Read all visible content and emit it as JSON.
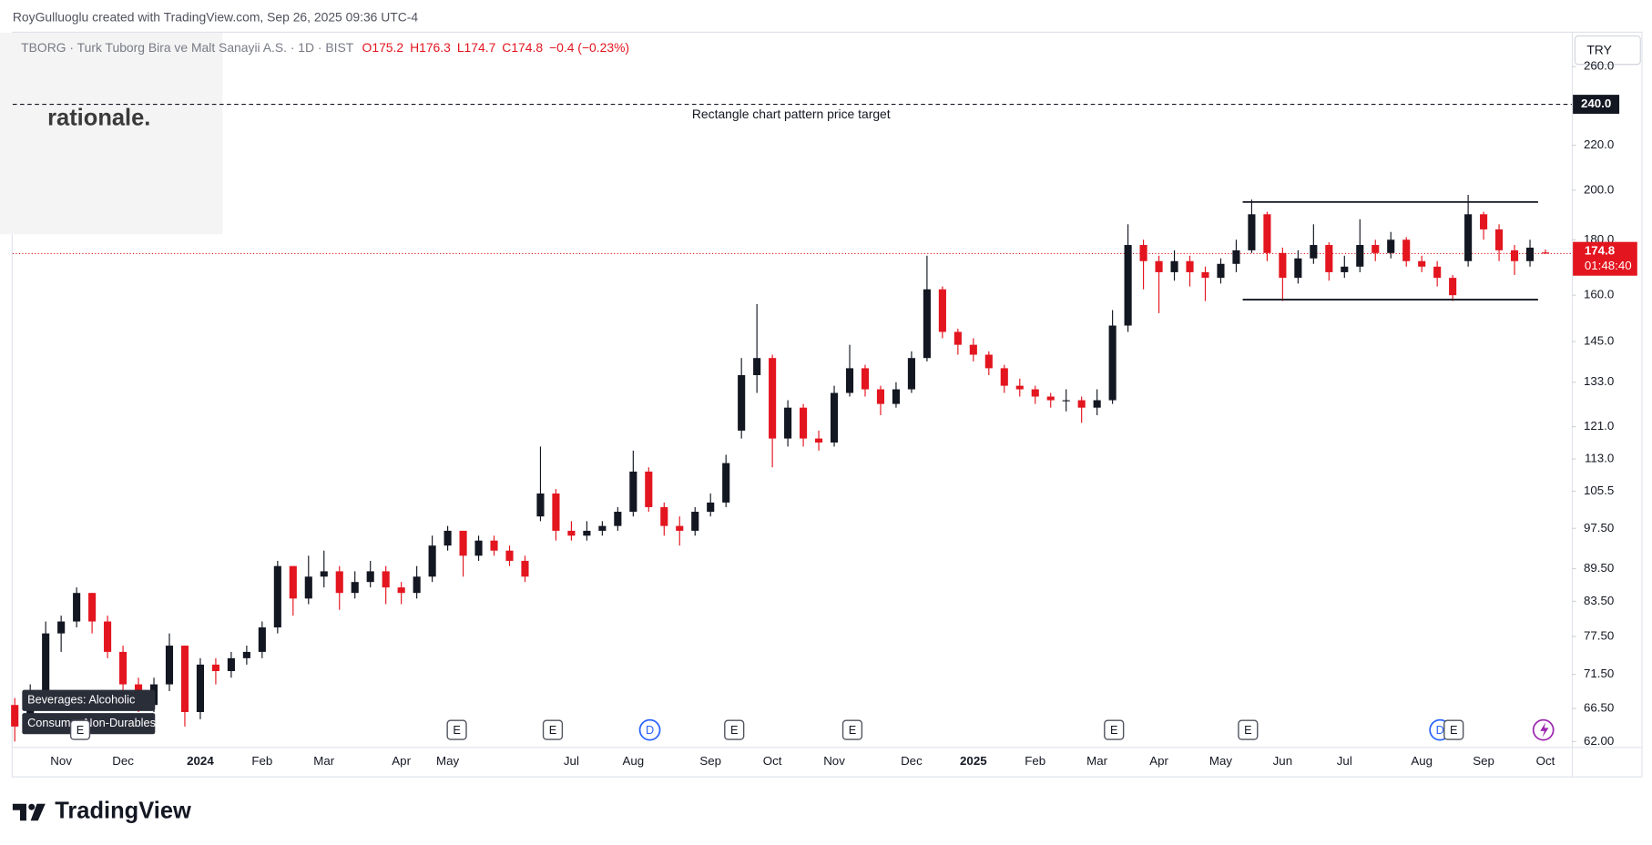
{
  "header": "RoyGulluoglu created with TradingView.com, Sep 26, 2025 09:36 UTC-4",
  "watermark": "rationale.",
  "currency": "TRY",
  "branding": "TradingView",
  "tags": [
    "Beverages: Alcoholic",
    "Consumer Non-Durables"
  ],
  "events": [
    "E",
    "E",
    "E",
    "D",
    "E",
    "E",
    "E",
    "E",
    "D",
    "E"
  ],
  "chart_data": {
    "type": "candlestick",
    "title": "TBORG · Turk Tuborg Bira ve Malt Sanayii A.S. · 1D · BIST",
    "legend_values": [
      "O175.2",
      "H176.3",
      "L174.7",
      "C174.8",
      "−0.4 (−0.23%)"
    ],
    "up_color": "#131722",
    "down_color": "#e3151f",
    "log_scale": true,
    "grid": false,
    "ylim": [
      61.3,
      280
    ],
    "yticks": [
      {
        "value": 62,
        "label": "62.00"
      },
      {
        "value": 66.5,
        "label": "66.50"
      },
      {
        "value": 71.5,
        "label": "71.50"
      },
      {
        "value": 77.5,
        "label": "77.50"
      },
      {
        "value": 83.5,
        "label": "83.50"
      },
      {
        "value": 89.5,
        "label": "89.50"
      },
      {
        "value": 97.5,
        "label": "97.50"
      },
      {
        "value": 105.5,
        "label": "105.5"
      },
      {
        "value": 113,
        "label": "113.0"
      },
      {
        "value": 121,
        "label": "121.0"
      },
      {
        "value": 133,
        "label": "133.0"
      },
      {
        "value": 145,
        "label": "145.0"
      },
      {
        "value": 160,
        "label": "160.0"
      },
      {
        "value": 180,
        "label": "180.0"
      },
      {
        "value": 200,
        "label": "200.0"
      },
      {
        "value": 220,
        "label": "220.0"
      },
      {
        "value": 260,
        "label": "260.0"
      }
    ],
    "categories": [
      null,
      null,
      null,
      "Nov",
      null,
      null,
      null,
      "Dec",
      null,
      null,
      null,
      null,
      "2024",
      null,
      null,
      null,
      "Feb",
      null,
      null,
      null,
      "Mar",
      null,
      null,
      null,
      null,
      "Apr",
      null,
      null,
      "May",
      null,
      null,
      null,
      null,
      null,
      null,
      null,
      "Jul",
      null,
      null,
      null,
      "Aug",
      null,
      null,
      null,
      null,
      "Sep",
      null,
      null,
      null,
      "Oct",
      null,
      null,
      null,
      "Nov",
      null,
      null,
      null,
      null,
      "Dec",
      null,
      null,
      null,
      "2025",
      null,
      null,
      null,
      "Feb",
      null,
      null,
      null,
      "Mar",
      null,
      null,
      null,
      "Apr",
      null,
      null,
      null,
      "May",
      null,
      null,
      null,
      "Jun",
      null,
      null,
      null,
      "Jul",
      null,
      null,
      null,
      null,
      "Aug",
      null,
      null,
      null,
      "Sep",
      null,
      null,
      null,
      "Oct"
    ],
    "open": [
      67,
      64,
      68,
      78,
      80,
      85,
      80,
      75,
      70,
      67,
      70,
      76,
      66,
      73,
      72,
      74,
      75,
      79,
      90,
      84,
      88,
      89,
      85,
      87,
      89,
      86,
      85,
      88,
      94,
      97,
      92,
      95,
      93,
      91,
      100,
      105,
      97,
      96,
      97,
      98,
      101,
      110,
      102,
      98,
      97,
      101,
      103,
      120,
      135,
      140,
      118,
      126,
      118,
      117,
      130,
      137,
      131,
      127,
      131,
      140,
      162,
      148,
      144,
      141,
      137,
      132,
      131,
      129,
      128,
      128,
      126,
      128,
      150,
      178,
      172,
      168,
      172,
      168,
      166,
      171,
      176,
      190,
      175,
      166,
      173,
      178,
      168,
      170,
      178,
      175,
      180,
      172,
      170,
      166,
      172,
      190,
      184,
      176,
      172,
      175.2
    ],
    "high": [
      68,
      70,
      80,
      81,
      86,
      85,
      81,
      76,
      71,
      71,
      78,
      76,
      74,
      74,
      75,
      76,
      80,
      91,
      90,
      92,
      93,
      90,
      89,
      91,
      90,
      87,
      90,
      96,
      98,
      97,
      96,
      96,
      94,
      92,
      116,
      106,
      99,
      99,
      99,
      102,
      115,
      111,
      103,
      100,
      102,
      105,
      114,
      140,
      157,
      141,
      128,
      127,
      120,
      132,
      144,
      138,
      132,
      133,
      142,
      174,
      163,
      149,
      146,
      142,
      138,
      134,
      132,
      130,
      131,
      129,
      131,
      155,
      186,
      180,
      174,
      176,
      174,
      170,
      173,
      180,
      196,
      191,
      177,
      176,
      186,
      179,
      174,
      188,
      180,
      183,
      181,
      174,
      172,
      167,
      198,
      191,
      186,
      178,
      180,
      176.3
    ],
    "low": [
      62,
      63,
      67,
      75,
      79,
      78,
      74,
      69,
      66,
      66,
      69,
      64,
      65,
      70,
      71,
      73,
      74,
      78,
      81,
      83,
      86,
      82,
      84,
      86,
      83,
      83,
      84,
      87,
      93,
      88,
      91,
      92,
      90,
      87,
      99,
      95,
      95,
      95,
      96,
      97,
      100,
      101,
      96,
      94,
      96,
      100,
      102,
      118,
      130,
      111,
      116,
      116,
      115,
      116,
      129,
      129,
      124,
      126,
      130,
      139,
      146,
      141,
      139,
      135,
      130,
      129,
      127,
      126,
      125,
      122,
      124,
      127,
      148,
      162,
      154,
      165,
      163,
      158,
      164,
      168,
      175,
      172,
      158,
      164,
      171,
      165,
      166,
      168,
      172,
      173,
      170,
      168,
      163,
      158,
      170,
      180,
      172,
      167,
      170,
      174.7
    ],
    "close": [
      64,
      68,
      78,
      80,
      85,
      80,
      75,
      70,
      67,
      70,
      76,
      66,
      73,
      72,
      74,
      75,
      79,
      90,
      84,
      88,
      89,
      85,
      87,
      89,
      86,
      85,
      88,
      94,
      97,
      92,
      95,
      93,
      91,
      88,
      105,
      97,
      96,
      97,
      98,
      101,
      110,
      102,
      98,
      97,
      101,
      103,
      112,
      135,
      140,
      118,
      126,
      118,
      117,
      130,
      137,
      131,
      127,
      131,
      140,
      162,
      148,
      144,
      141,
      137,
      132,
      131,
      129,
      128,
      128,
      126,
      128,
      150,
      178,
      172,
      168,
      172,
      168,
      166,
      171,
      176,
      190,
      175,
      166,
      173,
      178,
      168,
      170,
      178,
      175,
      180,
      172,
      170,
      166,
      160,
      190,
      184,
      176,
      172,
      177,
      174.8
    ],
    "target": {
      "value": 240,
      "label": "240.0",
      "text": "Rectangle chart pattern price target"
    },
    "rectangle": {
      "top": 195,
      "bottom": 158.5
    },
    "last_price": {
      "value": 174.8,
      "label": "174.8",
      "countdown": "01:48:40"
    }
  }
}
